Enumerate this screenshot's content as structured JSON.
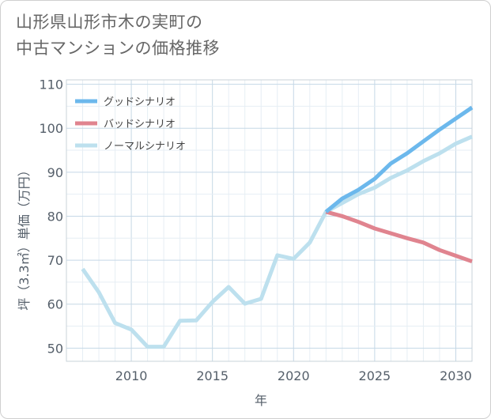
{
  "title_line1": "山形県山形市木の実町の",
  "title_line2": "中古マンションの価格推移",
  "chart_data": {
    "type": "line",
    "title": "山形県山形市木の実町の中古マンションの価格推移",
    "xlabel": "年",
    "ylabel": "坪（3.3㎡）単価（万円）",
    "xlim": [
      2006,
      2031
    ],
    "ylim": [
      47,
      111
    ],
    "xticks": [
      2010,
      2015,
      2020,
      2025,
      2030
    ],
    "yticks": [
      50,
      60,
      70,
      80,
      90,
      100,
      110
    ],
    "grid": true,
    "legend_position": "top-left",
    "series": [
      {
        "name": "グッドシナリオ",
        "color": "#6cb8ec",
        "x": [
          2022,
          2023,
          2024,
          2025,
          2026,
          2027,
          2028,
          2029,
          2030,
          2031
        ],
        "y": [
          81.0,
          84.0,
          86.0,
          88.5,
          92.0,
          94.3,
          97.0,
          99.7,
          102.2,
          104.7
        ]
      },
      {
        "name": "バッドシナリオ",
        "color": "#e0848f",
        "x": [
          2022,
          2023,
          2024,
          2025,
          2026,
          2027,
          2028,
          2029,
          2030,
          2031
        ],
        "y": [
          81.0,
          80.0,
          78.7,
          77.2,
          76.1,
          75.0,
          74.0,
          72.3,
          71.0,
          69.7
        ]
      },
      {
        "name": "ノーマルシナリオ",
        "color": "#bde0ee",
        "x": [
          2007,
          2008,
          2009,
          2010,
          2011,
          2012,
          2013,
          2014,
          2015,
          2016,
          2017,
          2018,
          2019,
          2020,
          2021,
          2022,
          2023,
          2024,
          2025,
          2026,
          2027,
          2028,
          2029,
          2030,
          2031
        ],
        "y": [
          68.0,
          62.7,
          55.7,
          54.2,
          50.3,
          50.3,
          56.2,
          56.3,
          60.5,
          63.9,
          60.1,
          61.2,
          71.1,
          70.3,
          74.0,
          81.0,
          83.0,
          85.0,
          86.5,
          88.7,
          90.4,
          92.5,
          94.3,
          96.5,
          98.1
        ]
      }
    ]
  }
}
